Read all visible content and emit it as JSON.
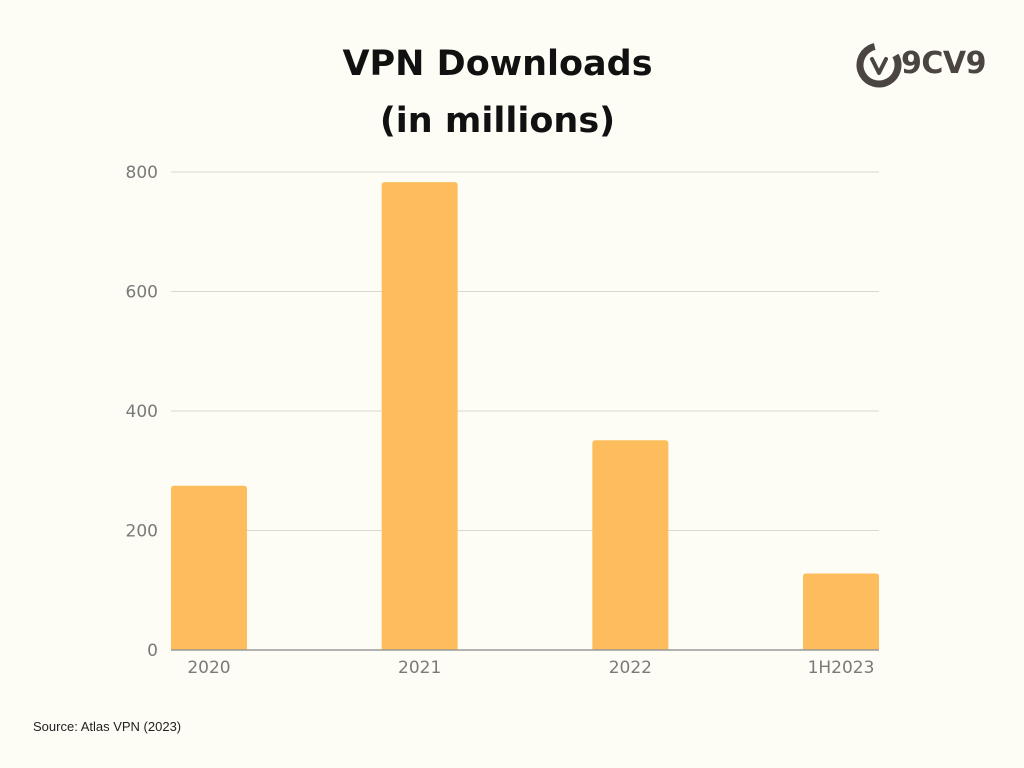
{
  "title_line1": "VPN Downloads",
  "title_line2": "(in millions)",
  "logo_text": "9CV9",
  "source": "Source: Atlas VPN (2023)",
  "colors": {
    "bar": "#fdbd5c",
    "grid": "#d9d9d2",
    "axis": "#9a9a9a",
    "tick_label": "#7a7a7a",
    "background": "#fdfdf5"
  },
  "chart_data": {
    "type": "bar",
    "categories": [
      "2020",
      "2021",
      "2022",
      "1H2023"
    ],
    "values": [
      275,
      783,
      351,
      128
    ],
    "ylim": [
      0,
      800
    ],
    "yticks": [
      0,
      200,
      400,
      600,
      800
    ],
    "grid": true,
    "legend": "none"
  }
}
